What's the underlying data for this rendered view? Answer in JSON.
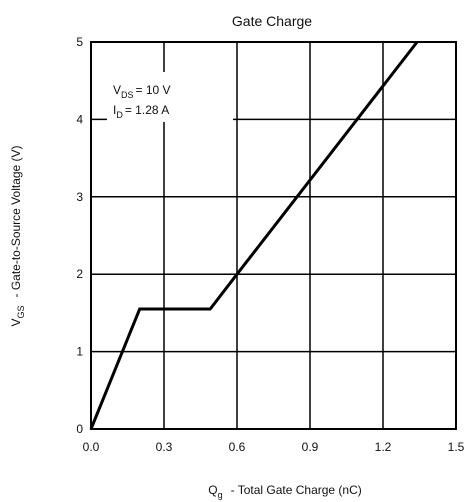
{
  "chart_data": {
    "type": "line",
    "title": "Gate Charge",
    "xlabel": {
      "symbol": "Q",
      "subscript": "g",
      "text": "-  Total Gate Charge (nC)"
    },
    "ylabel": {
      "symbol": "V",
      "subscript": "GS",
      "text": "-  Gate-to-Source Voltage (V)"
    },
    "xlim": [
      0,
      1.5
    ],
    "ylim": [
      0,
      5
    ],
    "xticks": [
      "0.0",
      "0.3",
      "0.6",
      "0.9",
      "1.2",
      "1.5"
    ],
    "yticks": [
      "0",
      "1",
      "2",
      "3",
      "4",
      "5"
    ],
    "grid": true,
    "annotations": [
      {
        "symbol": "V",
        "subscript": "DS",
        "value": "= 10  V"
      },
      {
        "symbol": "I",
        "subscript": "D",
        "value": "= 1.28  A"
      }
    ],
    "series": [
      {
        "x": [
          0.0,
          0.2,
          0.49,
          0.6,
          1.34
        ],
        "y": [
          0.0,
          1.55,
          1.55,
          2.0,
          5.0
        ]
      }
    ],
    "line_color": "#000000",
    "grid_color": "#000000"
  }
}
